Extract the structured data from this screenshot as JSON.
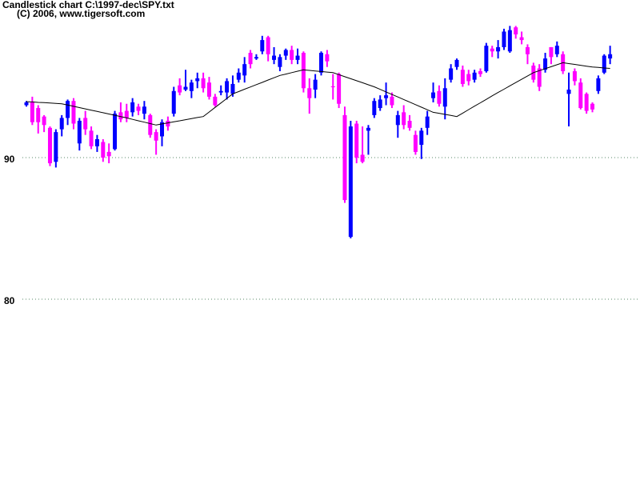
{
  "chart_data": {
    "type": "candlestick",
    "title": "Candlestick chart C:\\1997-dec\\SPY.txt",
    "subtitle": "(C) 2006, www.tigersoft.com",
    "ylim": [
      67.23,
      101.13
    ],
    "yticks": [
      80,
      90
    ],
    "grid": true,
    "up_color": "#0000ff",
    "down_color": "#ff00ff",
    "open": [
      93.7,
      93.9,
      93.5,
      92.9,
      92.1,
      89.7,
      92.0,
      92.8,
      94.0,
      91.0,
      92.8,
      91.9,
      90.8,
      91.1,
      90.4,
      90.6,
      93.2,
      93.3,
      93.2,
      93.6,
      93.1,
      93.0,
      91.8,
      91.5,
      92.6,
      93.1,
      95.1,
      94.8,
      94.7,
      95.4,
      95.6,
      95.3,
      94.3,
      94.6,
      94.6,
      94.5,
      95.5,
      95.8,
      97.4,
      97.0,
      97.5,
      98.5,
      96.9,
      96.4,
      97.2,
      97.6,
      96.9,
      97.4,
      94.9,
      94.8,
      96.0,
      97.3,
      95.0,
      95.9,
      93.0,
      84.4,
      92.4,
      90.2,
      91.9,
      93.0,
      93.5,
      94.2,
      94.3,
      92.3,
      93.2,
      92.6,
      91.6,
      90.9,
      92.1,
      94.2,
      94.7,
      93.6,
      95.5,
      96.4,
      96.2,
      95.9,
      95.5,
      96.1,
      96.1,
      97.7,
      97.5,
      97.8,
      97.5,
      99.2,
      98.5,
      97.8,
      96.5,
      96.3,
      96.2,
      97.8,
      97.3,
      97.3,
      94.5,
      96.1,
      95.3,
      94.5,
      93.8,
      94.7,
      96.0,
      97.0
    ],
    "high": [
      94.0,
      94.3,
      93.7,
      93.0,
      92.2,
      92.0,
      93.0,
      94.1,
      94.2,
      92.8,
      93.3,
      92.2,
      91.6,
      91.3,
      91.0,
      93.3,
      93.9,
      93.8,
      94.2,
      93.8,
      94.0,
      93.1,
      92.0,
      92.7,
      92.9,
      95.0,
      95.6,
      96.2,
      95.5,
      96.0,
      96.0,
      95.7,
      94.5,
      95.1,
      95.6,
      95.8,
      96.3,
      97.1,
      97.6,
      97.3,
      98.6,
      98.6,
      97.8,
      97.3,
      97.7,
      97.9,
      97.7,
      97.5,
      95.6,
      95.9,
      97.5,
      97.6,
      95.9,
      96.0,
      93.6,
      92.6,
      92.6,
      92.2,
      92.3,
      94.2,
      94.4,
      95.3,
      94.6,
      93.3,
      93.7,
      93.0,
      91.9,
      92.1,
      93.3,
      95.3,
      95.1,
      95.6,
      96.6,
      97.0,
      96.5,
      96.2,
      96.2,
      96.3,
      98.1,
      97.9,
      98.3,
      99.1,
      99.3,
      99.3,
      98.9,
      98.0,
      96.7,
      96.6,
      97.4,
      97.8,
      98.2,
      97.5,
      96.0,
      96.3,
      95.6,
      94.6,
      93.9,
      95.8,
      97.3,
      97.9
    ],
    "low": [
      93.6,
      92.3,
      91.7,
      91.8,
      89.4,
      89.3,
      91.5,
      92.3,
      92.0,
      90.5,
      91.6,
      90.6,
      90.4,
      89.7,
      89.6,
      90.5,
      92.5,
      92.5,
      92.9,
      93.0,
      92.7,
      91.4,
      90.2,
      90.8,
      91.9,
      92.9,
      94.4,
      94.7,
      94.2,
      94.9,
      94.6,
      94.1,
      93.6,
      94.4,
      94.1,
      94.3,
      95.3,
      95.3,
      96.3,
      96.9,
      97.3,
      96.8,
      96.6,
      96.1,
      96.9,
      96.6,
      96.6,
      94.6,
      93.1,
      94.2,
      95.8,
      96.4,
      94.1,
      93.5,
      86.8,
      84.3,
      89.6,
      89.6,
      90.2,
      92.8,
      93.3,
      93.7,
      93.5,
      91.4,
      92.0,
      91.9,
      90.2,
      89.9,
      91.6,
      93.9,
      93.6,
      92.7,
      95.3,
      96.2,
      95.0,
      95.1,
      95.3,
      95.7,
      96.0,
      97.1,
      97.0,
      97.6,
      97.4,
      98.4,
      98.0,
      96.6,
      95.3,
      94.7,
      96.0,
      96.6,
      97.1,
      95.9,
      92.2,
      95.1,
      93.4,
      93.1,
      93.2,
      94.5,
      95.9,
      96.6
    ],
    "close": [
      93.9,
      92.5,
      92.5,
      92.3,
      89.6,
      91.8,
      92.8,
      94.0,
      92.4,
      92.6,
      92.0,
      90.8,
      91.3,
      90.0,
      90.1,
      93.1,
      92.7,
      92.8,
      93.9,
      93.3,
      93.6,
      91.6,
      91.2,
      92.5,
      92.2,
      94.7,
      94.6,
      95.0,
      95.3,
      95.6,
      94.9,
      94.3,
      93.7,
      94.7,
      95.4,
      95.2,
      96.0,
      96.6,
      96.6,
      97.1,
      98.3,
      97.3,
      97.2,
      97.1,
      97.6,
      96.9,
      97.2,
      94.9,
      94.2,
      95.5,
      97.4,
      96.8,
      95.0,
      93.8,
      87.0,
      92.2,
      90.0,
      89.7,
      92.1,
      94.0,
      94.1,
      94.4,
      93.7,
      93.0,
      92.3,
      92.1,
      90.4,
      91.9,
      92.9,
      94.6,
      93.8,
      94.9,
      96.3,
      96.9,
      95.2,
      95.4,
      96.0,
      95.9,
      97.9,
      97.5,
      97.8,
      98.9,
      99.0,
      98.7,
      98.3,
      97.3,
      95.5,
      95.0,
      97.0,
      97.1,
      97.9,
      96.1,
      94.8,
      95.4,
      93.5,
      93.3,
      93.4,
      95.6,
      97.2,
      97.3
    ],
    "ma": {
      "color": "#000000",
      "values": [
        93.95,
        93.93,
        93.9,
        93.88,
        93.85,
        93.83,
        93.8,
        93.71,
        93.62,
        93.53,
        93.44,
        93.35,
        93.26,
        93.17,
        93.08,
        92.99,
        92.9,
        92.8,
        92.7,
        92.6,
        92.5,
        92.4,
        92.3,
        92.38,
        92.45,
        92.53,
        92.6,
        92.68,
        92.75,
        92.83,
        92.9,
        93.22,
        93.54,
        93.86,
        94.18,
        94.5,
        94.66,
        94.83,
        94.99,
        95.15,
        95.31,
        95.48,
        95.64,
        95.8,
        95.9,
        96.0,
        96.1,
        96.2,
        96.16,
        96.12,
        96.08,
        96.04,
        96.0,
        95.86,
        95.71,
        95.57,
        95.43,
        95.29,
        95.14,
        95.0,
        94.82,
        94.64,
        94.46,
        94.28,
        94.1,
        93.92,
        93.74,
        93.56,
        93.38,
        93.2,
        93.13,
        93.05,
        92.98,
        92.9,
        93.14,
        93.39,
        93.63,
        93.87,
        94.11,
        94.36,
        94.6,
        94.83,
        95.07,
        95.3,
        95.53,
        95.77,
        96.0,
        96.14,
        96.28,
        96.42,
        96.56,
        96.7,
        96.64,
        96.58,
        96.52,
        96.46,
        96.4,
        96.37,
        96.33,
        96.3
      ]
    }
  }
}
